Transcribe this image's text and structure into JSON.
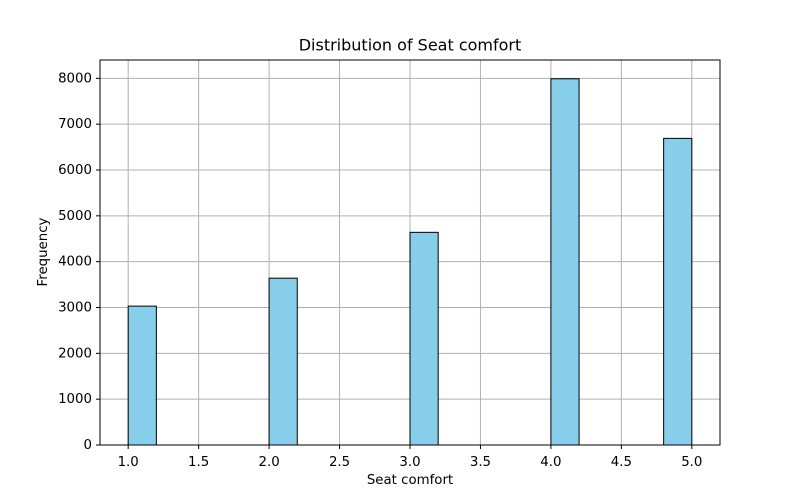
{
  "chart_data": {
    "type": "bar",
    "title": "Distribution of Seat comfort",
    "xlabel": "Seat comfort",
    "ylabel": "Frequency",
    "xlim": [
      0.8,
      5.2
    ],
    "ylim": [
      0,
      8400
    ],
    "x_ticks": [
      1.0,
      1.5,
      2.0,
      2.5,
      3.0,
      3.5,
      4.0,
      4.5,
      5.0
    ],
    "x_tick_labels": [
      "1.0",
      "1.5",
      "2.0",
      "2.5",
      "3.0",
      "3.5",
      "4.0",
      "4.5",
      "5.0"
    ],
    "y_ticks": [
      0,
      1000,
      2000,
      3000,
      4000,
      5000,
      6000,
      7000,
      8000
    ],
    "y_tick_labels": [
      "0",
      "1000",
      "2000",
      "3000",
      "4000",
      "5000",
      "6000",
      "7000",
      "8000"
    ],
    "grid": true,
    "bins": [
      {
        "start": 1.0,
        "end": 1.2,
        "value": 3030
      },
      {
        "start": 2.0,
        "end": 2.2,
        "value": 3640
      },
      {
        "start": 3.0,
        "end": 3.2,
        "value": 4640
      },
      {
        "start": 4.0,
        "end": 4.2,
        "value": 7990
      },
      {
        "start": 4.8,
        "end": 5.0,
        "value": 6690
      }
    ],
    "bar_color": "#87ceeb",
    "edge_color": "#000000",
    "grid_color": "#b0b0b0"
  }
}
